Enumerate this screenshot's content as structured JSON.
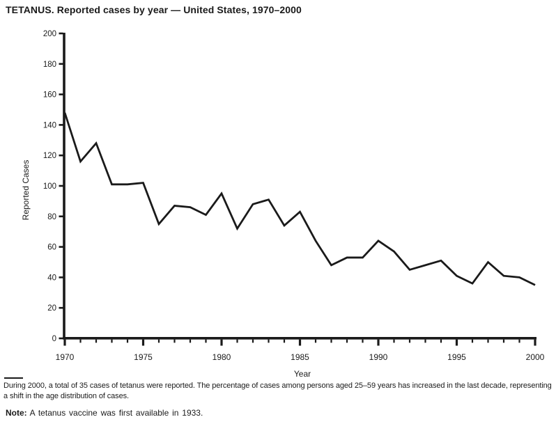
{
  "page": {
    "background": "#ffffff",
    "text_color": "#1a1a1a"
  },
  "title": "TETANUS. Reported cases by year — United States, 1970–2000",
  "chart_data": {
    "type": "line",
    "title": "TETANUS. Reported cases by year — United States, 1970–2000",
    "xlabel": "Year",
    "ylabel": "Reported Cases",
    "x": [
      1970,
      1971,
      1972,
      1973,
      1974,
      1975,
      1976,
      1977,
      1978,
      1979,
      1980,
      1981,
      1982,
      1983,
      1984,
      1985,
      1986,
      1987,
      1988,
      1989,
      1990,
      1991,
      1992,
      1993,
      1994,
      1995,
      1996,
      1997,
      1998,
      1999,
      2000
    ],
    "values": [
      148,
      116,
      128,
      101,
      101,
      102,
      75,
      87,
      86,
      81,
      95,
      72,
      88,
      91,
      74,
      83,
      64,
      48,
      53,
      53,
      64,
      57,
      45,
      48,
      51,
      41,
      36,
      50,
      41,
      40,
      35
    ],
    "ylim": [
      0,
      200
    ],
    "ytick_interval": 20,
    "yticks": [
      0,
      20,
      40,
      60,
      80,
      100,
      120,
      140,
      160,
      180,
      200
    ],
    "xticks_labeled": [
      1970,
      1975,
      1980,
      1985,
      1990,
      1995,
      2000
    ],
    "xtick_minor_interval_years": 1,
    "grid": false,
    "legend": "none",
    "line_color": "#1a1a1a",
    "axis_color": "#1a1a1a"
  },
  "footnote": "During 2000, a total of 35 cases of tetanus were reported. The percentage of cases among persons aged 25–59 years has increased in the last decade, representing a shift in the age distribution of cases.",
  "note_label": "Note:",
  "note_text": "A tetanus vaccine was first available in 1933."
}
